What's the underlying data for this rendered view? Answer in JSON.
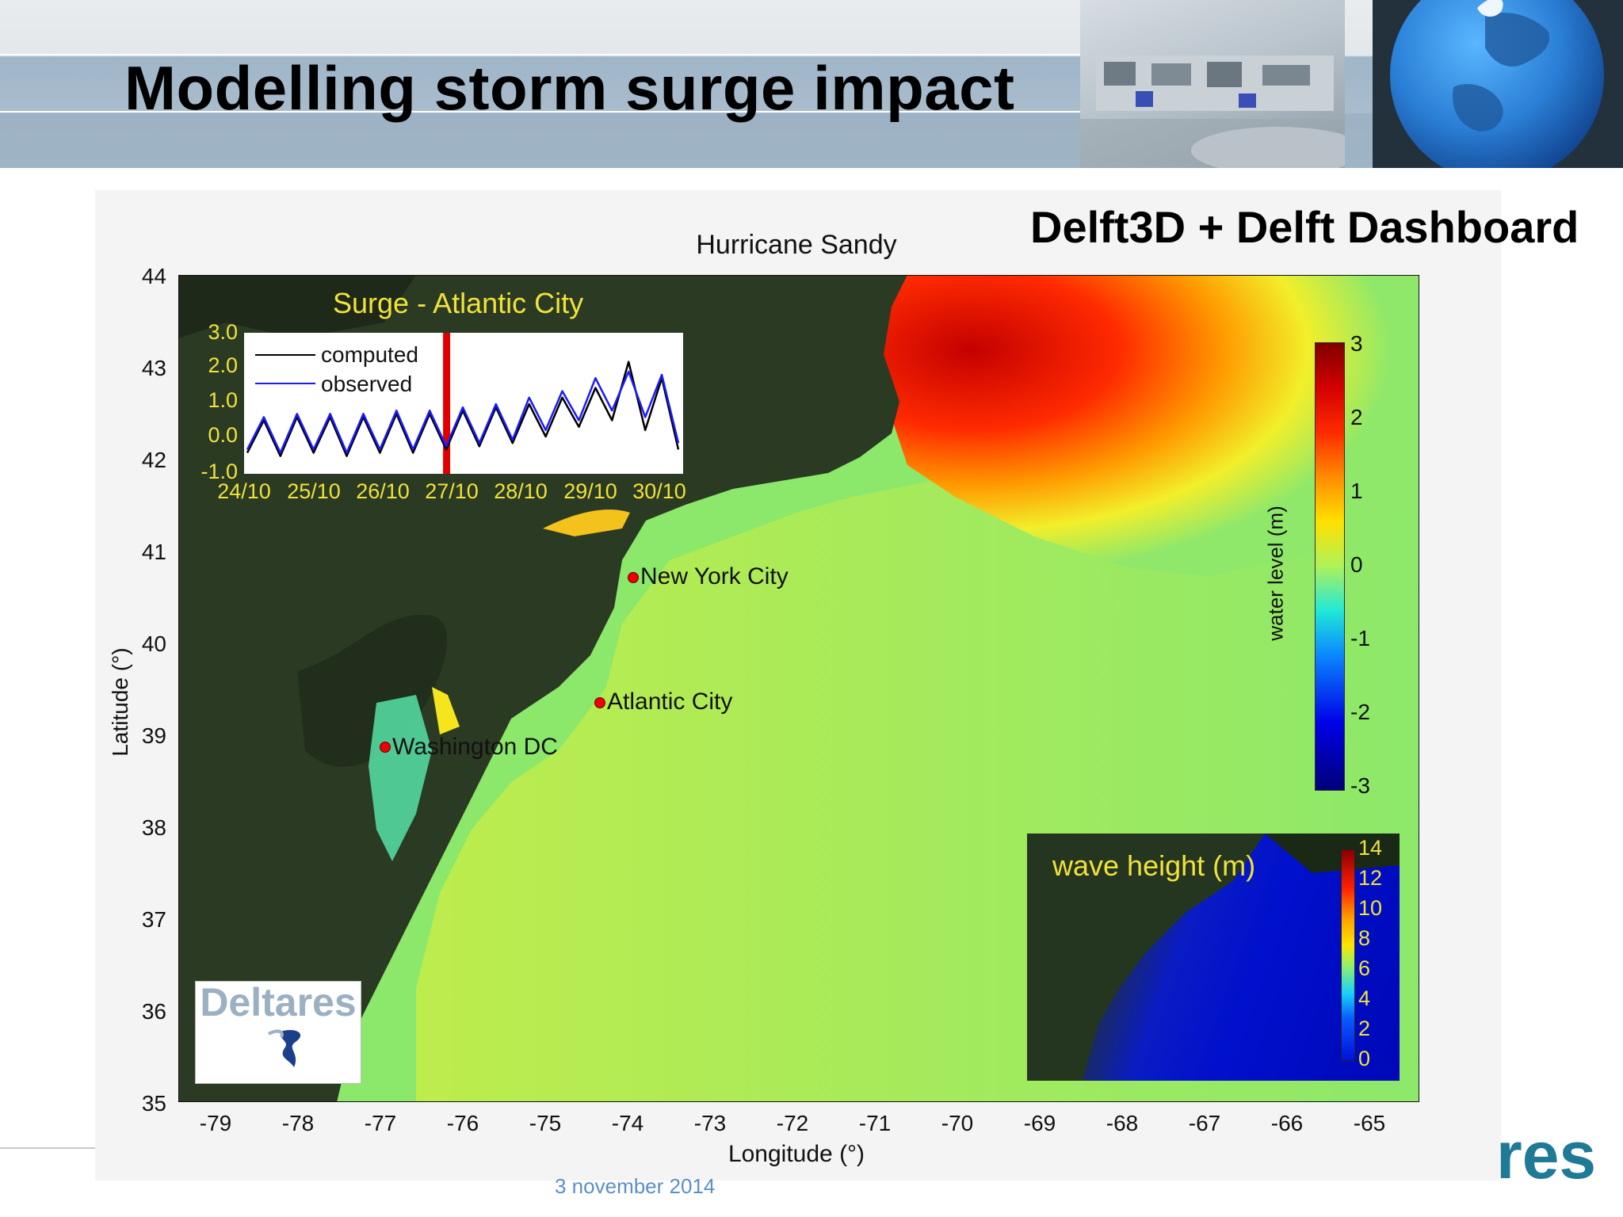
{
  "slide": {
    "title": "Modelling storm surge impact",
    "subtitle": "Delft3D + Delft Dashboard",
    "date": "3 november 2014",
    "footer_logo": "res"
  },
  "map": {
    "title": "Hurricane Sandy",
    "ylabel": "Latitude (°)",
    "xlabel": "Longitude (°)",
    "lat_ticks": [
      "44",
      "43",
      "42",
      "41",
      "40",
      "39",
      "38",
      "37",
      "36",
      "35"
    ],
    "lon_ticks": [
      "-79",
      "-78",
      "-77",
      "-76",
      "-75",
      "-74",
      "-73",
      "-72",
      "-71",
      "-70",
      "-69",
      "-68",
      "-67",
      "-66",
      "-65"
    ],
    "cities": [
      {
        "name": "New York City"
      },
      {
        "name": "Atlantic City"
      },
      {
        "name": "Washington DC"
      }
    ],
    "logo_text": "Deltares",
    "colors": {
      "land": "#2b3a22",
      "sea": "#8be86a",
      "surge_high": "#e11d00",
      "city_marker": "#e00000"
    }
  },
  "colorbar": {
    "label": "water level (m)",
    "ticks": [
      "3",
      "2",
      "1",
      "0",
      "-1",
      "-2",
      "-3"
    ]
  },
  "inset": {
    "title": "Surge - Atlantic City",
    "y_ticks": [
      "3.0",
      "2.0",
      "1.0",
      "0.0",
      "-1.0"
    ],
    "x_ticks": [
      "24/10",
      "25/10",
      "26/10",
      "27/10",
      "28/10",
      "29/10",
      "30/10"
    ],
    "legend": {
      "computed": "computed",
      "observed": "observed"
    },
    "colors": {
      "computed": "#000000",
      "observed": "#1a1aff",
      "marker": "#e00000"
    }
  },
  "wave_inset": {
    "title": "wave height (m)",
    "ticks": [
      "14",
      "12",
      "10",
      "8",
      "6",
      "4",
      "2",
      "0"
    ]
  },
  "chart_data": {
    "type": "line",
    "title": "Surge - Atlantic City",
    "xlabel": "",
    "ylabel": "",
    "ylim": [
      -1.0,
      3.0
    ],
    "xlim": [
      "24/10",
      "30/10"
    ],
    "current_time": "27/10",
    "series": [
      {
        "name": "computed",
        "x_days": [
          24.0,
          24.25,
          24.5,
          24.75,
          25.0,
          25.25,
          25.5,
          25.75,
          26.0,
          26.25,
          26.5,
          26.75,
          27.0,
          27.25,
          27.5,
          27.75,
          28.0,
          28.25,
          28.5,
          28.75,
          29.0,
          29.25,
          29.5,
          29.75,
          30.0,
          30.25,
          30.5
        ],
        "values": [
          -0.5,
          0.5,
          -0.6,
          0.6,
          -0.5,
          0.6,
          -0.6,
          0.6,
          -0.5,
          0.7,
          -0.5,
          0.7,
          -0.4,
          0.8,
          -0.3,
          0.9,
          -0.2,
          1.0,
          0.0,
          1.2,
          0.3,
          1.5,
          0.5,
          2.3,
          0.2,
          1.8,
          -0.4
        ]
      },
      {
        "name": "observed",
        "x_days": [
          24.0,
          24.25,
          24.5,
          24.75,
          25.0,
          25.25,
          25.5,
          25.75,
          26.0,
          26.25,
          26.5,
          26.75,
          27.0,
          27.25,
          27.5,
          27.75,
          28.0,
          28.25,
          28.5,
          28.75,
          29.0,
          29.25,
          29.5,
          29.75,
          30.0,
          30.25,
          30.5
        ],
        "values": [
          -0.4,
          0.6,
          -0.5,
          0.7,
          -0.4,
          0.7,
          -0.5,
          0.7,
          -0.4,
          0.8,
          -0.4,
          0.8,
          -0.3,
          0.9,
          -0.2,
          1.0,
          -0.1,
          1.2,
          0.2,
          1.4,
          0.5,
          1.8,
          0.8,
          2.0,
          0.6,
          1.9,
          -0.2
        ]
      }
    ]
  }
}
